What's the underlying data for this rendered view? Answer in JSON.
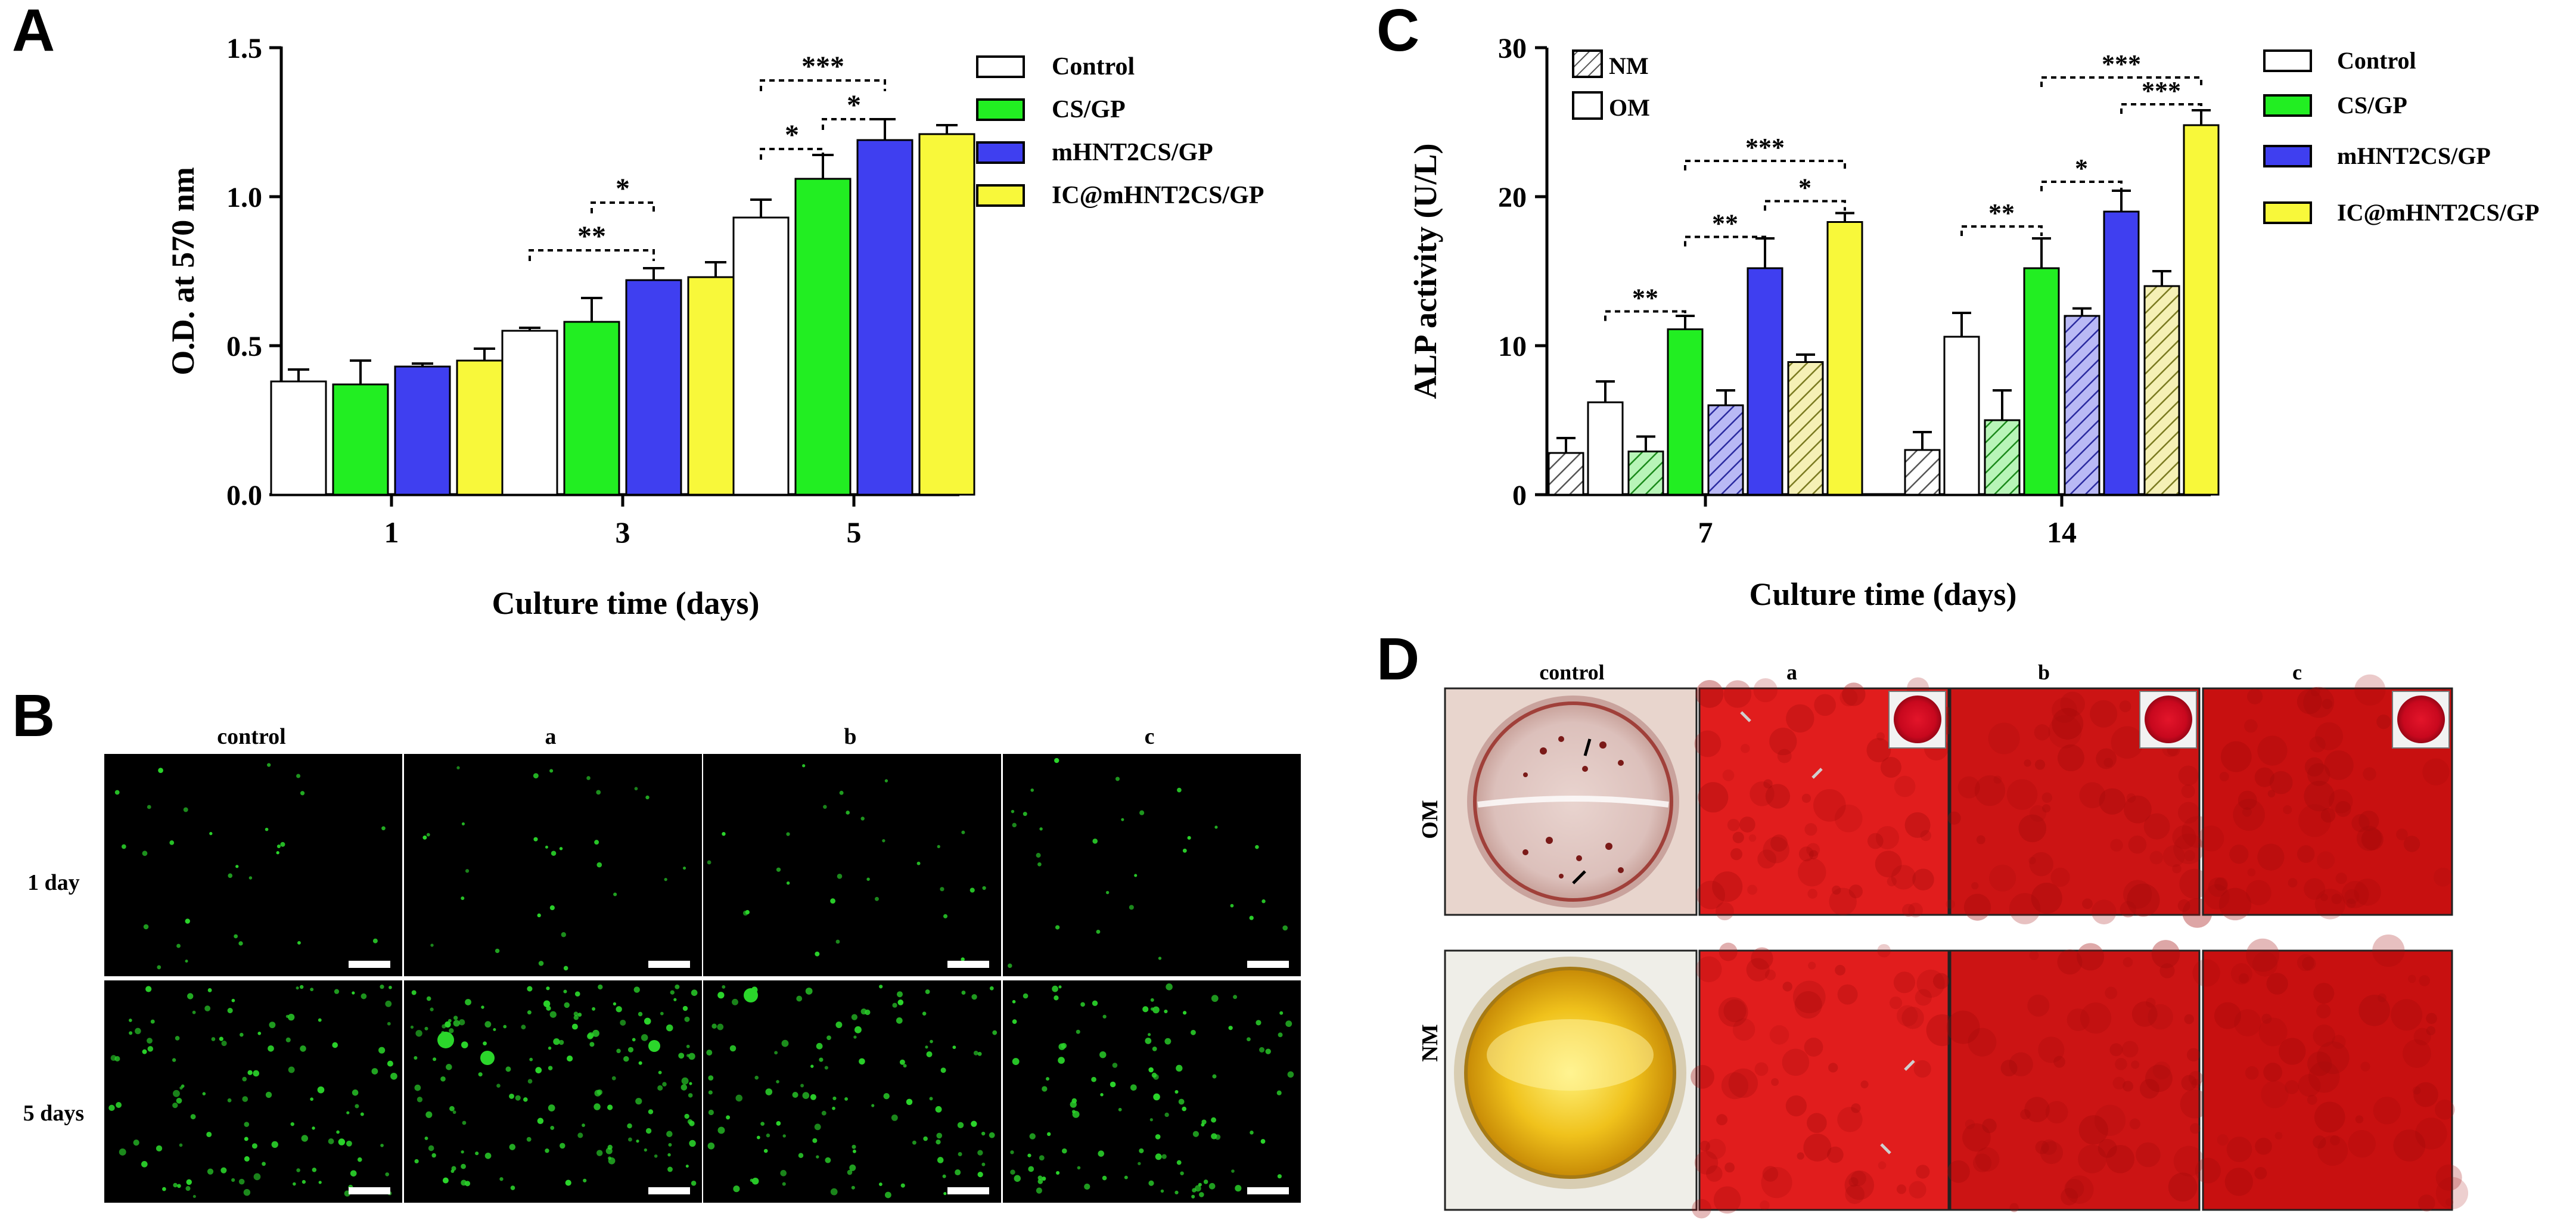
{
  "panels": {
    "A": "A",
    "B": "B",
    "C": "C",
    "D": "D"
  },
  "colors": {
    "Control": "#ffffff",
    "CS/GP": "#22ee22",
    "mHNT2CS/GP": "#3f3ff0",
    "IC@mHNT2CS/GP": "#f8f83a"
  },
  "chart_data": [
    {
      "type": "bar",
      "panel": "A",
      "xlabel": "Culture time (days)",
      "ylabel": "O.D. at 570 nm",
      "ylim": [
        0,
        1.5
      ],
      "yticks": [
        "0.0",
        "0.5",
        "1.0",
        "1.5"
      ],
      "categories": [
        "1",
        "3",
        "5"
      ],
      "legend": [
        "Control",
        "CS/GP",
        "mHNT2CS/GP",
        "IC@mHNT2CS/GP"
      ],
      "legend_position": "top-right",
      "series": [
        {
          "name": "Control",
          "values": [
            0.38,
            0.55,
            0.93
          ],
          "errors": [
            0.04,
            0.01,
            0.06
          ]
        },
        {
          "name": "CS/GP",
          "values": [
            0.37,
            0.58,
            1.06
          ],
          "errors": [
            0.08,
            0.08,
            0.08
          ]
        },
        {
          "name": "mHNT2CS/GP",
          "values": [
            0.43,
            0.72,
            1.19
          ],
          "errors": [
            0.01,
            0.04,
            0.07
          ]
        },
        {
          "name": "IC@mHNT2CS/GP",
          "values": [
            0.45,
            0.73,
            1.21
          ],
          "errors": [
            0.04,
            0.05,
            0.03
          ]
        }
      ],
      "significance": [
        {
          "group": "3",
          "from": "Control",
          "to": "mHNT2CS/GP",
          "label": "**",
          "level": 0.82
        },
        {
          "group": "3",
          "from": "CS/GP",
          "to": "mHNT2CS/GP",
          "label": "*",
          "level": 0.98
        },
        {
          "group": "5",
          "from": "Control",
          "to": "CS/GP",
          "label": "*",
          "level": 1.16
        },
        {
          "group": "5",
          "from": "CS/GP",
          "to": "mHNT2CS/GP",
          "label": "*",
          "level": 1.26
        },
        {
          "group": "5",
          "from": "Control",
          "to": "mHNT2CS/GP",
          "label": "***",
          "level": 1.39
        }
      ]
    },
    {
      "type": "bar",
      "panel": "C",
      "xlabel": "Culture time (days)",
      "ylabel": "ALP activity (U/L)",
      "ylim": [
        0,
        30
      ],
      "yticks": [
        "0",
        "10",
        "20",
        "30"
      ],
      "categories": [
        "7",
        "14"
      ],
      "legend": [
        "Control",
        "CS/GP",
        "mHNT2CS/GP",
        "IC@mHNT2CS/GP"
      ],
      "legend_medium": [
        "NM",
        "OM"
      ],
      "legend_position": "top-right",
      "series": [
        {
          "name": "Control",
          "values_NM": [
            2.8,
            3.0
          ],
          "errors_NM": [
            1.0,
            1.2
          ],
          "values_OM": [
            6.2,
            10.6
          ],
          "errors_OM": [
            1.4,
            1.6
          ]
        },
        {
          "name": "CS/GP",
          "values_NM": [
            2.9,
            5.0
          ],
          "errors_NM": [
            1.0,
            2.0
          ],
          "values_OM": [
            11.1,
            15.2
          ],
          "errors_OM": [
            0.9,
            2.0
          ]
        },
        {
          "name": "mHNT2CS/GP",
          "values_NM": [
            6.0,
            12.0
          ],
          "errors_NM": [
            1.0,
            0.5
          ],
          "values_OM": [
            15.2,
            19.0
          ],
          "errors_OM": [
            2.0,
            1.4
          ]
        },
        {
          "name": "IC@mHNT2CS/GP",
          "values_NM": [
            8.9,
            14.0
          ],
          "errors_NM": [
            0.5,
            1.0
          ],
          "values_OM": [
            18.3,
            24.8
          ],
          "errors_OM": [
            0.6,
            1.0
          ]
        }
      ],
      "significance": [
        {
          "group": "7",
          "from": "Control/OM",
          "to": "CS/GP/OM",
          "label": "**",
          "level": 12.3
        },
        {
          "group": "7",
          "from": "CS/GP/OM",
          "to": "mHNT2CS/GP/OM",
          "label": "**",
          "level": 17.3
        },
        {
          "group": "7",
          "from": "mHNT2CS/GP/OM",
          "to": "IC@mHNT2CS/GP/OM",
          "label": "*",
          "level": 19.7
        },
        {
          "group": "7",
          "from": "CS/GP/OM",
          "to": "IC@mHNT2CS/GP/OM",
          "label": "***",
          "level": 22.4
        },
        {
          "group": "14",
          "from": "Control/OM",
          "to": "CS/GP/OM",
          "label": "**",
          "level": 18.0
        },
        {
          "group": "14",
          "from": "CS/GP/OM",
          "to": "mHNT2CS/GP/OM",
          "label": "*",
          "level": 21.0
        },
        {
          "group": "14",
          "from": "mHNT2CS/GP/OM",
          "to": "IC@mHNT2CS/GP/OM",
          "label": "***",
          "level": 26.2
        },
        {
          "group": "14",
          "from": "CS/GP/OM",
          "to": "IC@mHNT2CS/GP/OM",
          "label": "***",
          "level": 28.0
        }
      ]
    }
  ],
  "panelB": {
    "columns": [
      "control",
      "a",
      "b",
      "c"
    ],
    "rows": [
      "1 day",
      "5 days"
    ]
  },
  "panelD": {
    "columns": [
      "control",
      "a",
      "b",
      "c"
    ],
    "rows": [
      "OM",
      "NM"
    ]
  }
}
